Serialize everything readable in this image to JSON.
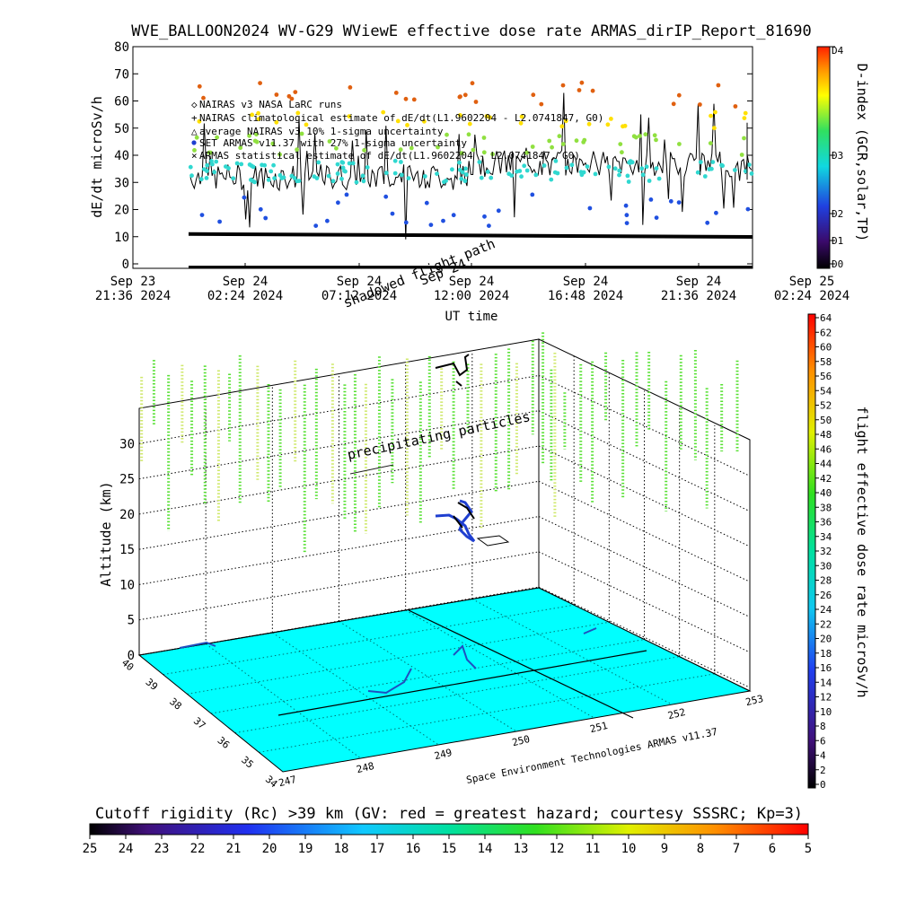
{
  "title": "WVE_BALLOON2024 WV-G29 WViewE effective dose rate ARMAS_dirIP_Report_81690",
  "upper_chart": {
    "ylabel": "dE/dt microSv/h",
    "xlabel": "UT time",
    "right_label": "D-index (GCR,solar,TP)",
    "right_ticks": [
      "D4",
      "D3",
      "D2",
      "D1",
      "D0"
    ],
    "yticks": [
      "80",
      "70",
      "60",
      "50",
      "40",
      "30",
      "20",
      "10",
      "0"
    ],
    "xticks": [
      {
        "day": "Sep 23",
        "time": "21:36 2024"
      },
      {
        "day": "Sep 24",
        "time": "02:24 2024"
      },
      {
        "day": "Sep 24",
        "time": "07:12 2024"
      },
      {
        "day": "Sep 24",
        "time": "12:00 2024"
      },
      {
        "day": "Sep 24",
        "time": "16:48 2024"
      },
      {
        "day": "Sep 24",
        "time": "21:36 2024"
      },
      {
        "day": "Sep 25",
        "time": "02:24 2024"
      }
    ],
    "legend": [
      "NAIRAS v3 NASA LaRC runs",
      "NAIRAS climatological estimate of dE/dt(L1.9602204 - L2.0741847, G0)",
      "average NAIRAS v3 10% 1-sigma uncertainty",
      "SET ARMAS v11.37 with 27% 1-sigma uncertainty",
      "ARMAS statistical estimate of dE/dt(L1.9602204 - L2.0741847, G0)"
    ],
    "overlay_text": [
      "shadowed flight path",
      "Sep 24"
    ]
  },
  "lower_chart": {
    "zlabel": "Altitude (km)",
    "zticks": [
      "30",
      "25",
      "20",
      "15",
      "10",
      "5",
      "0"
    ],
    "lat_ticks": [
      "40",
      "39",
      "38",
      "37",
      "36",
      "35",
      "34"
    ],
    "lon_ticks": [
      "247",
      "248",
      "249",
      "250",
      "251",
      "252",
      "253"
    ],
    "annotation": "precipitating particles",
    "credit": "Space Environment Technologies ARMAS v11.37"
  },
  "right_colorbar": {
    "label": "flight effective dose rate microSv/h",
    "ticks": [
      "64",
      "62",
      "60",
      "58",
      "56",
      "54",
      "52",
      "50",
      "48",
      "46",
      "44",
      "42",
      "40",
      "38",
      "36",
      "34",
      "32",
      "30",
      "28",
      "26",
      "24",
      "22",
      "20",
      "18",
      "16",
      "14",
      "12",
      "10",
      "8",
      "6",
      "4",
      "2",
      "0"
    ]
  },
  "bottom_colorbar": {
    "title": "Cutoff rigidity (Rc) >39 km (GV: red = greatest hazard; courtesy SSSRC; Kp=3)",
    "ticks": [
      "25",
      "24",
      "23",
      "22",
      "21",
      "20",
      "19",
      "18",
      "17",
      "16",
      "15",
      "14",
      "13",
      "12",
      "11",
      "10",
      "9",
      "8",
      "7",
      "6",
      "5"
    ]
  },
  "colors": {
    "black": "#000000",
    "surface": "#00ffff",
    "route": "#1f3fd0",
    "pale_dose": "#cfe86a",
    "green_dose": "#55e030"
  },
  "chart_data": [
    {
      "type": "scatter",
      "title": "WVE_BALLOON2024 WV-G29 WViewE effective dose rate ARMAS_dirIP_Report_81690",
      "xlabel": "UT time",
      "ylabel": "dE/dt microSv/h",
      "ylim": [
        0,
        80
      ],
      "x_range": [
        "2024-09-23 21:36",
        "2024-09-25 02:24"
      ],
      "series": [
        {
          "name": "SET ARMAS v11.37 with 27% 1-sigma uncertainty",
          "x": [
            "2024-09-24 02:00",
            "2024-09-24 05:00",
            "2024-09-24 08:00",
            "2024-09-24 11:00",
            "2024-09-24 14:00",
            "2024-09-24 17:00",
            "2024-09-24 20:00",
            "2024-09-24 23:00"
          ],
          "y": [
            32,
            38,
            35,
            42,
            38,
            37,
            36,
            34
          ]
        },
        {
          "name": "NAIRAS climatological estimate of dE/dt(L1.9602204 - L2.0741847, G0)",
          "x": [
            "2024-09-24 00:00",
            "2024-09-24 06:00",
            "2024-09-24 12:00",
            "2024-09-24 18:00",
            "2024-09-25 00:00"
          ],
          "y": [
            11,
            10.8,
            10.6,
            10.3,
            9.8
          ]
        }
      ],
      "grid": false
    },
    {
      "type": "scatter",
      "zlabel": "Altitude (km)",
      "zlim": [
        0,
        35
      ],
      "xlim": [
        247,
        253
      ],
      "ylim": [
        34,
        40
      ],
      "annotation": "precipitating particles"
    }
  ]
}
